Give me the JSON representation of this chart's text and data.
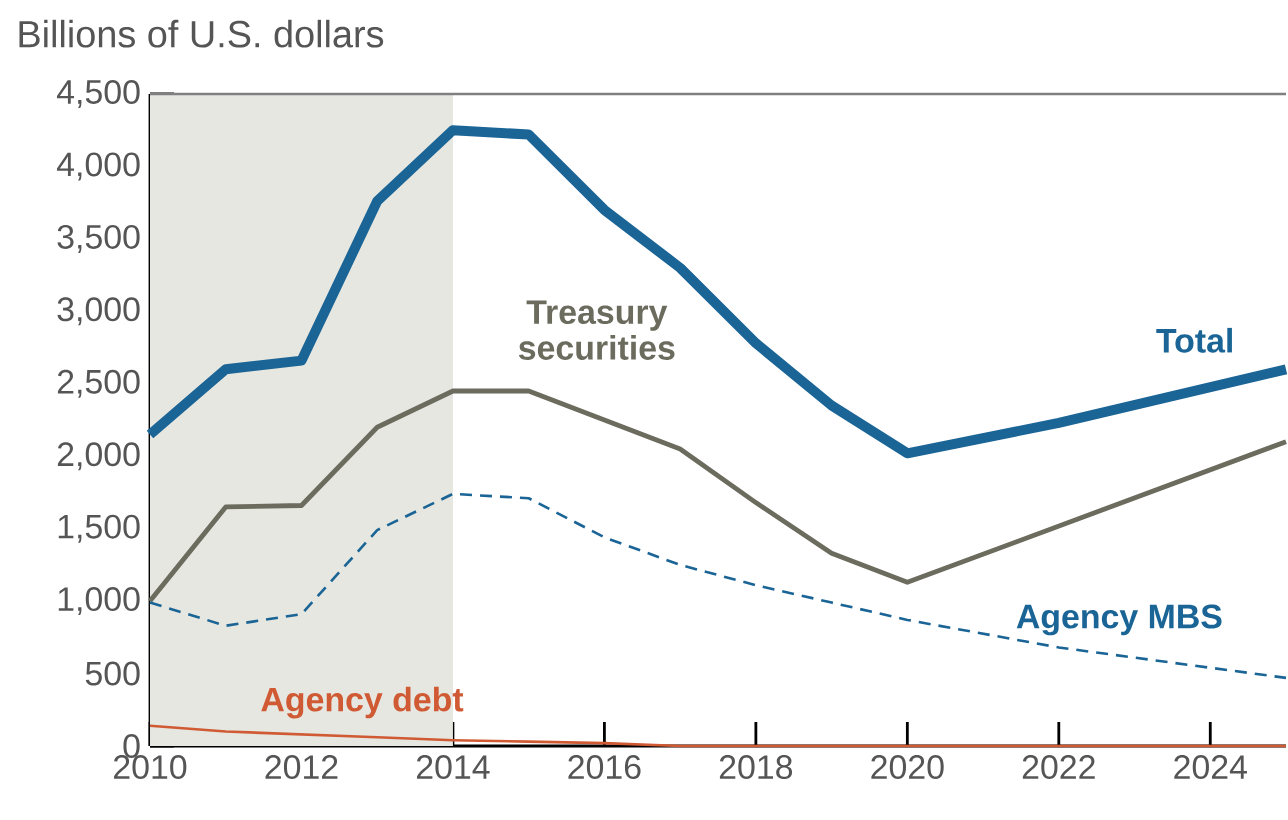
{
  "chart_data": {
    "type": "line",
    "ylabel": "Billions of U.S. dollars",
    "xlim": [
      2010,
      2025
    ],
    "xticks": [
      2010,
      2012,
      2014,
      2016,
      2018,
      2020,
      2022,
      2024
    ],
    "ylim": [
      0,
      4500
    ],
    "yticks": [
      {
        "value": 0,
        "label": "0"
      },
      {
        "value": 500,
        "label": "500"
      },
      {
        "value": 1000,
        "label": "1,000"
      },
      {
        "value": 1500,
        "label": "1,500"
      },
      {
        "value": 2000,
        "label": "2,000"
      },
      {
        "value": 2500,
        "label": "2,500"
      },
      {
        "value": 3000,
        "label": "3,000"
      },
      {
        "value": 3500,
        "label": "3,500"
      },
      {
        "value": 4000,
        "label": "4,000"
      },
      {
        "value": 4500,
        "label": "4,500"
      }
    ],
    "grid": false,
    "marker": "none",
    "bands": [
      {
        "axis": "x",
        "from": 2010,
        "to": 2014,
        "color": "#e6e7e0"
      }
    ],
    "series": [
      {
        "color": "#1a6496",
        "line_style": "solid",
        "x": [
          2010,
          2011,
          2012,
          2013,
          2014,
          2015,
          2016,
          2017,
          2018,
          2019,
          2020,
          2022,
          2025
        ],
        "values": [
          2150,
          2600,
          2660,
          3760,
          4250,
          4220,
          3700,
          3300,
          2780,
          2350,
          2020,
          2230,
          2600
        ]
      },
      {
        "color": "#6b6b5e",
        "line_style": "solid",
        "x": [
          2010,
          2011,
          2012,
          2013,
          2014,
          2015,
          2016,
          2017,
          2018,
          2019,
          2020,
          2025
        ],
        "values": [
          1000,
          1650,
          1660,
          2200,
          2450,
          2450,
          2250,
          2050,
          1680,
          1330,
          1130,
          2100
        ]
      },
      {
        "color": "#1a6496",
        "line_style": "dashed",
        "x": [
          2010,
          2011,
          2012,
          2013,
          2014,
          2015,
          2016,
          2017,
          2018,
          2019,
          2020,
          2022,
          2025
        ],
        "values": [
          990,
          830,
          910,
          1490,
          1740,
          1710,
          1440,
          1250,
          1110,
          990,
          870,
          680,
          470
        ]
      },
      {
        "color": "#d05a33",
        "line_style": "solid",
        "x": [
          2010,
          2011,
          2012,
          2013,
          2014,
          2015,
          2016,
          2017,
          2025
        ],
        "values": [
          140,
          100,
          80,
          60,
          40,
          30,
          20,
          0,
          0
        ]
      }
    ],
    "annotations": [
      "Total",
      "Treasury securities",
      "Agency MBS",
      "Agency debt"
    ]
  }
}
